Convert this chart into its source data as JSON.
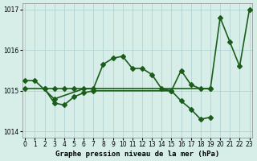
{
  "xlabel": "Graphe pression niveau de la mer (hPa)",
  "ylabel": "",
  "background_color": "#d6ede8",
  "grid_color": "#aacccc",
  "line_color": "#1a5e1a",
  "ylim": [
    1013.85,
    1017.15
  ],
  "yticks": [
    1014,
    1015,
    1016,
    1017
  ],
  "xlim": [
    -0.3,
    23.3
  ],
  "xticks": [
    0,
    1,
    2,
    3,
    4,
    5,
    6,
    7,
    8,
    9,
    10,
    11,
    12,
    13,
    14,
    15,
    16,
    17,
    18,
    19,
    20,
    21,
    22,
    23
  ],
  "series1_x": [
    0,
    1,
    3,
    6,
    7,
    8,
    9,
    10,
    11,
    12,
    13,
    14,
    15,
    16,
    17,
    18,
    19,
    20,
    21,
    22,
    23
  ],
  "series1_y": [
    1015.25,
    1015.25,
    1014.8,
    1015.05,
    1015.05,
    1015.65,
    1015.8,
    1015.85,
    1015.55,
    1015.55,
    1015.4,
    1015.05,
    1015.0,
    1015.5,
    1015.15,
    1015.05,
    1015.05,
    1016.8,
    1016.2,
    1015.6,
    1017.0
  ],
  "series2_x": [
    2,
    3,
    4,
    5,
    6,
    7,
    15,
    16,
    17,
    18,
    19
  ],
  "series2_y": [
    1015.05,
    1014.7,
    1014.65,
    1014.85,
    1014.95,
    1015.0,
    1015.0,
    1014.75,
    1014.55,
    1014.3,
    1014.35
  ],
  "series3_x": [
    0,
    2,
    3,
    4,
    5,
    19
  ],
  "series3_y": [
    1015.05,
    1015.05,
    1015.05,
    1015.05,
    1015.05,
    1015.05
  ],
  "marker_size": 3,
  "line_width": 1.2,
  "tick_fontsize": 5.5,
  "label_fontsize": 6.5
}
